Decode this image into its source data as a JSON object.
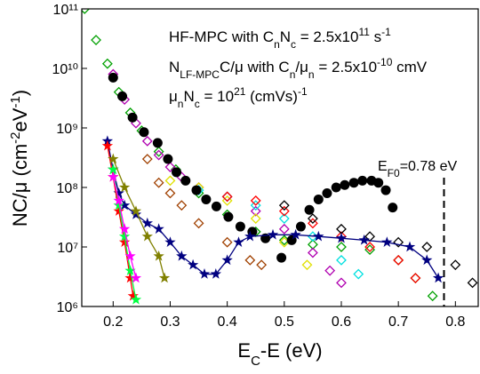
{
  "chart_data": {
    "type": "scatter",
    "log_y": true,
    "xlim": [
      0.145,
      0.84
    ],
    "ylim": [
      1000000,
      100000000000
    ],
    "xticks": [
      0.2,
      0.3,
      0.4,
      0.5,
      0.6,
      0.7,
      0.8
    ],
    "yticks": [
      {
        "value": 1000000,
        "label": "10⁶"
      },
      {
        "value": 10000000,
        "label": "10⁷"
      },
      {
        "value": 100000000,
        "label": "10⁸"
      },
      {
        "value": 1000000000,
        "label": "10⁹"
      },
      {
        "value": 10000000000,
        "label": "10¹⁰"
      },
      {
        "value": 100000000000,
        "label": "10¹¹"
      }
    ],
    "x_label": [
      "E",
      "C",
      "-E (eV)"
    ],
    "y_label": [
      "NC/μ (cm",
      "-2",
      "eV",
      "-1",
      ")"
    ],
    "annotations": [
      [
        "HF-MPC with C",
        "n",
        "N",
        "c",
        " = 2.5x10",
        "11",
        " s",
        "-1"
      ],
      [
        "N",
        "LF-MPC",
        "C/μ with C",
        "n",
        "/μ",
        "n",
        " = 2.5x10",
        "-10",
        " cmV"
      ],
      [
        "μ",
        "n",
        "N",
        "c",
        " = 10",
        "21",
        " (cmVs)",
        "-1"
      ]
    ],
    "fermi_label": [
      "E",
      "F0",
      "=0.78 eV"
    ],
    "fermi_level": 0.78,
    "series": [
      {
        "marker": "diamond",
        "color": "#00a000",
        "x": [
          0.15,
          0.17,
          0.19,
          0.21,
          0.23,
          0.25,
          0.28,
          0.31,
          0.35,
          0.4,
          0.45,
          0.5,
          0.55,
          0.6,
          0.65,
          0.7,
          0.73,
          0.76
        ],
        "values": [
          100000000000,
          30000000000,
          12000000000,
          4000000000,
          1800000000,
          900000000,
          400000000,
          200000000,
          80000000,
          35000000,
          18000000,
          13000000,
          11000000,
          10000000,
          9000000,
          6000000,
          3000000,
          1500000
        ]
      },
      {
        "marker": "diamond",
        "color": "#b000b0",
        "x": [
          0.2,
          0.22,
          0.24,
          0.26,
          0.28,
          0.3,
          0.32,
          0.35,
          0.4,
          0.45,
          0.5,
          0.55,
          0.58,
          0.6
        ],
        "values": [
          8000000000,
          3000000000,
          1200000000,
          600000000,
          350000000,
          220000000,
          150000000,
          100000000,
          70000000,
          40000000,
          20000000,
          8000000,
          4000000,
          2500000
        ]
      },
      {
        "marker": "diamond",
        "color": "#a04000",
        "x": [
          0.26,
          0.28,
          0.3,
          0.32,
          0.35,
          0.4,
          0.44,
          0.46
        ],
        "values": [
          300000000,
          120000000,
          80000000,
          50000000,
          25000000,
          12000000,
          6000000,
          5000000
        ]
      },
      {
        "marker": "diamond",
        "color": "#e0e000",
        "x": [
          0.3,
          0.35,
          0.4,
          0.45,
          0.5,
          0.54
        ],
        "values": [
          130000000,
          100000000,
          60000000,
          30000000,
          12000000,
          5000000
        ]
      },
      {
        "marker": "diamond",
        "color": "#00e0e0",
        "x": [
          0.35,
          0.4,
          0.45,
          0.5,
          0.55,
          0.6,
          0.63
        ],
        "values": [
          90000000,
          70000000,
          50000000,
          30000000,
          15000000,
          6000000,
          3500000
        ]
      },
      {
        "marker": "diamond",
        "color": "#ff0000",
        "x": [
          0.4,
          0.45,
          0.5,
          0.55,
          0.6,
          0.65,
          0.7,
          0.73
        ],
        "values": [
          70000000,
          60000000,
          40000000,
          25000000,
          15000000,
          10000000,
          6000000,
          3000000
        ]
      },
      {
        "marker": "diamond",
        "color": "#000000",
        "x": [
          0.5,
          0.55,
          0.6,
          0.65,
          0.7,
          0.75,
          0.8,
          0.83
        ],
        "values": [
          50000000,
          30000000,
          20000000,
          15000000,
          12000000,
          10000000,
          5000000,
          2500000
        ]
      },
      {
        "marker": "circle",
        "color": "#000000",
        "x": [
          0.2,
          0.216,
          0.234,
          0.254,
          0.278,
          0.296,
          0.311,
          0.327,
          0.346,
          0.363,
          0.381,
          0.402,
          0.423,
          0.444,
          0.467,
          0.495,
          0.513,
          0.529,
          0.544,
          0.56,
          0.575,
          0.591,
          0.606,
          0.622,
          0.637,
          0.653,
          0.665,
          0.678,
          0.69
        ],
        "values": [
          7000000000,
          3400000000,
          1500000000,
          850000000,
          560000000,
          300000000,
          180000000,
          130000000,
          90000000,
          63000000,
          48000000,
          32000000,
          22000000,
          18000000,
          14000000,
          6600000,
          13000000,
          22000000,
          42000000,
          63000000,
          80000000,
          100000000,
          110000000,
          120000000,
          130000000,
          130000000,
          120000000,
          90000000,
          46000000
        ]
      },
      {
        "marker": "star",
        "color": "#000080",
        "x": [
          0.19,
          0.2,
          0.21,
          0.22,
          0.24,
          0.26,
          0.28,
          0.3,
          0.32,
          0.34,
          0.36,
          0.38,
          0.4,
          0.42,
          0.44,
          0.48,
          0.52,
          0.56,
          0.6,
          0.64,
          0.68,
          0.72,
          0.75,
          0.77
        ],
        "values": [
          600000000,
          200000000,
          80000000,
          50000000,
          35000000,
          25000000,
          20000000,
          12000000,
          7000000,
          5000000,
          3500000,
          3500000,
          6000000,
          12000000,
          15000000,
          16000000,
          16000000,
          15000000,
          14000000,
          13000000,
          12000000,
          10000000,
          6000000,
          3000000
        ]
      },
      {
        "marker": "star",
        "color": "#ff0000",
        "x": [
          0.19,
          0.2,
          0.21,
          0.22,
          0.23,
          0.235
        ],
        "values": [
          500000000,
          150000000,
          40000000,
          12000000,
          3000000,
          1500000
        ]
      },
      {
        "marker": "star",
        "color": "#00ff40",
        "x": [
          0.2,
          0.21,
          0.22,
          0.23,
          0.24
        ],
        "values": [
          200000000,
          50000000,
          15000000,
          4000000,
          1300000
        ]
      },
      {
        "marker": "star",
        "color": "#ff00ff",
        "x": [
          0.2,
          0.21,
          0.22,
          0.23,
          0.24
        ],
        "values": [
          150000000,
          60000000,
          20000000,
          7000000,
          3000000
        ]
      },
      {
        "marker": "star",
        "color": "#808000",
        "x": [
          0.2,
          0.22,
          0.24,
          0.26,
          0.28,
          0.29
        ],
        "values": [
          300000000,
          100000000,
          40000000,
          15000000,
          7000000,
          3000000
        ]
      }
    ]
  }
}
